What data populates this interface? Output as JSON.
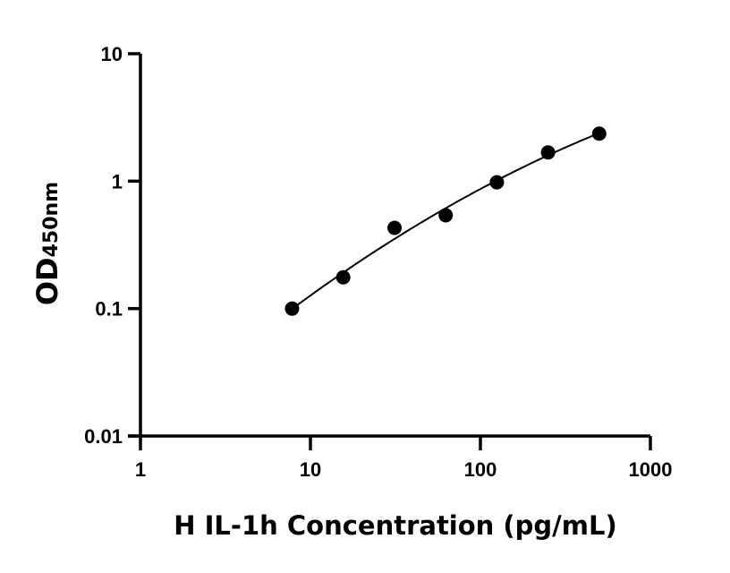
{
  "chart_data": {
    "type": "scatter",
    "title": "",
    "xlabel": "H IL-1h Concentration (pg/mL)",
    "ylabel_main": "OD",
    "ylabel_sub": "450nm",
    "x_scale": "log",
    "y_scale": "log",
    "xlim": [
      1,
      1000
    ],
    "ylim": [
      0.01,
      10
    ],
    "x_ticks": [
      1,
      10,
      100,
      1000
    ],
    "x_tick_labels": [
      "1",
      "10",
      "100",
      "1000"
    ],
    "y_ticks": [
      0.01,
      0.1,
      1,
      10
    ],
    "y_tick_labels": [
      "0.01",
      "0.1",
      "1",
      "10"
    ],
    "grid": false,
    "fit_curve": true,
    "marker_color": "#000000",
    "points": [
      {
        "x": 7.8,
        "y": 0.1
      },
      {
        "x": 15.6,
        "y": 0.176
      },
      {
        "x": 31.25,
        "y": 0.43
      },
      {
        "x": 62.5,
        "y": 0.54
      },
      {
        "x": 125,
        "y": 0.98
      },
      {
        "x": 250,
        "y": 1.68
      },
      {
        "x": 500,
        "y": 2.36
      }
    ]
  }
}
